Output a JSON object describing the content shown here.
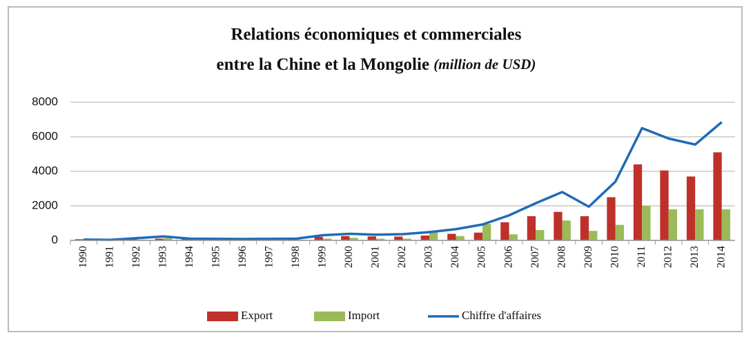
{
  "chart_data": {
    "type": "bar_line",
    "title": [
      "Relations économiques et commerciales",
      "entre la Chine et la Mongolie"
    ],
    "title_note": "(million de USD)",
    "categories": [
      "1990",
      "1991",
      "1992",
      "1993",
      "1994",
      "1995",
      "1996",
      "1997",
      "1998",
      "1999",
      "2000",
      "2001",
      "2002",
      "2003",
      "2004",
      "2005",
      "2006",
      "2007",
      "2008",
      "2009",
      "2010",
      "2011",
      "2012",
      "2013",
      "2014"
    ],
    "series": [
      {
        "name": "Export",
        "type": "bar",
        "color": "#c0302a",
        "values": [
          70,
          20,
          80,
          100,
          60,
          50,
          40,
          50,
          60,
          200,
          250,
          230,
          220,
          280,
          380,
          450,
          1050,
          1400,
          1650,
          1400,
          2500,
          4400,
          4050,
          3700,
          5100
        ]
      },
      {
        "name": "Import",
        "type": "bar",
        "color": "#9bbb59",
        "values": [
          20,
          10,
          50,
          130,
          40,
          40,
          40,
          40,
          40,
          100,
          150,
          100,
          100,
          450,
          250,
          950,
          350,
          600,
          1150,
          550,
          900,
          2000,
          1800,
          1800,
          1800
        ]
      },
      {
        "name": "Chiffre d'affaires",
        "type": "line",
        "color": "#1f6bb5",
        "values": [
          50,
          30,
          130,
          230,
          100,
          90,
          80,
          90,
          100,
          300,
          380,
          330,
          360,
          480,
          650,
          920,
          1450,
          2150,
          2800,
          1950,
          3400,
          6500,
          5900,
          5550,
          6850
        ]
      }
    ],
    "ylim": [
      0,
      8000
    ],
    "yticks": [
      0,
      2000,
      4000,
      6000,
      8000
    ],
    "grid": true,
    "legend": "bottom"
  }
}
